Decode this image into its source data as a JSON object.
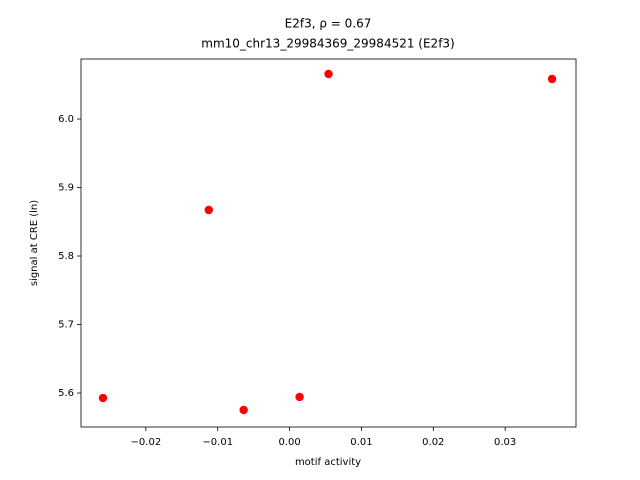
{
  "chart_data": {
    "type": "scatter",
    "title": "E2f3, ρ = 0.67",
    "subtitle": "mm10_chr13_29984369_29984521 (E2f3)",
    "x_label": "motif activity",
    "y_label": "signal at CRE (ln)",
    "color": "#ff0000",
    "x": [
      -0.02597,
      -0.01125,
      -0.00639,
      0.00139,
      0.00542,
      0.03653
    ],
    "y": [
      5.5927,
      5.8672,
      5.5752,
      5.5942,
      6.0657,
      6.0584
    ],
    "xlim": [
      -0.02903,
      0.03986
    ],
    "ylim": [
      5.5504,
      6.0876
    ],
    "xticks": [
      {
        "value": -0.02,
        "label": "−0.02"
      },
      {
        "value": -0.01,
        "label": "−0.01"
      },
      {
        "value": 0,
        "label": "0.00"
      },
      {
        "value": 0.01,
        "label": "0.01"
      },
      {
        "value": 0.02,
        "label": "0.02"
      },
      {
        "value": 0.03,
        "label": "0.03"
      }
    ],
    "yticks": [
      {
        "value": 5.6,
        "label": "5.6"
      },
      {
        "value": 5.7,
        "label": "5.7"
      },
      {
        "value": 5.8,
        "label": "5.8"
      },
      {
        "value": 5.9,
        "label": "5.9"
      },
      {
        "value": 6,
        "label": "6.0"
      }
    ]
  }
}
